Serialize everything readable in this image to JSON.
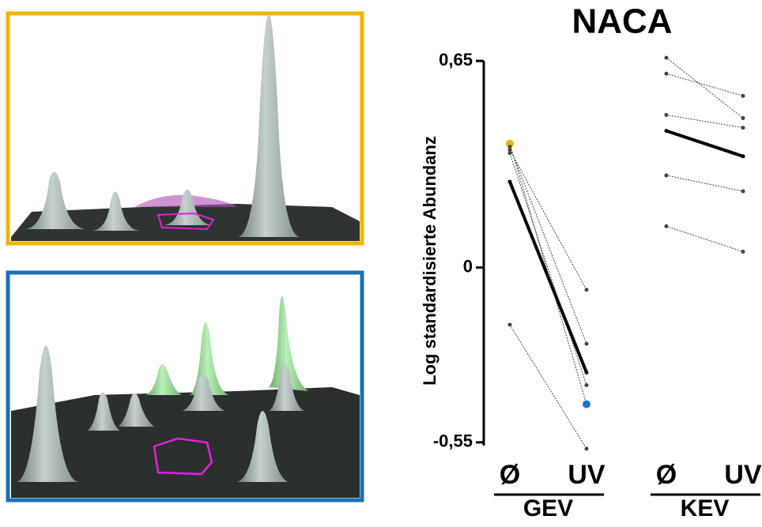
{
  "chart_data": {
    "type": "line",
    "title": "NACA",
    "y_label": "Log standardisierte Abundanz",
    "categories": [
      "Ø",
      "UV",
      "Ø",
      "UV"
    ],
    "groups": [
      "GEV",
      "KEV"
    ],
    "ylim": [
      -0.6,
      0.7
    ],
    "yticks": [
      {
        "value": 0.65,
        "label": "0,65"
      },
      0,
      {
        "value": -0.55,
        "label": "-0,55"
      }
    ],
    "series": [
      {
        "color": "#444444",
        "line_width": 1,
        "marker_colors": [
          "#f0b400",
          "#1a78c2",
          null,
          null
        ],
        "values": [
          0.39,
          -0.43,
          null,
          null
        ]
      },
      {
        "color": "#444444",
        "line_width": 1,
        "values": [
          0.37,
          -0.07,
          null,
          null
        ]
      },
      {
        "color": "#444444",
        "line_width": 1,
        "values": [
          0.38,
          -0.24,
          null,
          null
        ]
      },
      {
        "color": "#444444",
        "line_width": 1,
        "values": [
          0.36,
          -0.37,
          null,
          null
        ]
      },
      {
        "color": "#444444",
        "line_width": 1,
        "values": [
          -0.18,
          -0.57,
          null,
          null
        ]
      },
      {
        "color": "#000000",
        "line_width": 4,
        "values": [
          0.27,
          -0.33,
          null,
          null
        ]
      },
      {
        "color": "#444444",
        "line_width": 1,
        "values": [
          null,
          null,
          0.66,
          0.47
        ]
      },
      {
        "color": "#444444",
        "line_width": 1,
        "values": [
          null,
          null,
          0.61,
          0.54
        ]
      },
      {
        "color": "#444444",
        "line_width": 1,
        "values": [
          null,
          null,
          0.48,
          0.44
        ]
      },
      {
        "color": "#444444",
        "line_width": 1,
        "values": [
          null,
          null,
          0.29,
          0.24
        ]
      },
      {
        "color": "#444444",
        "line_width": 1,
        "values": [
          null,
          null,
          0.13,
          0.05
        ]
      },
      {
        "color": "#000000",
        "line_width": 4,
        "values": [
          null,
          null,
          0.43,
          0.35
        ]
      }
    ]
  }
}
